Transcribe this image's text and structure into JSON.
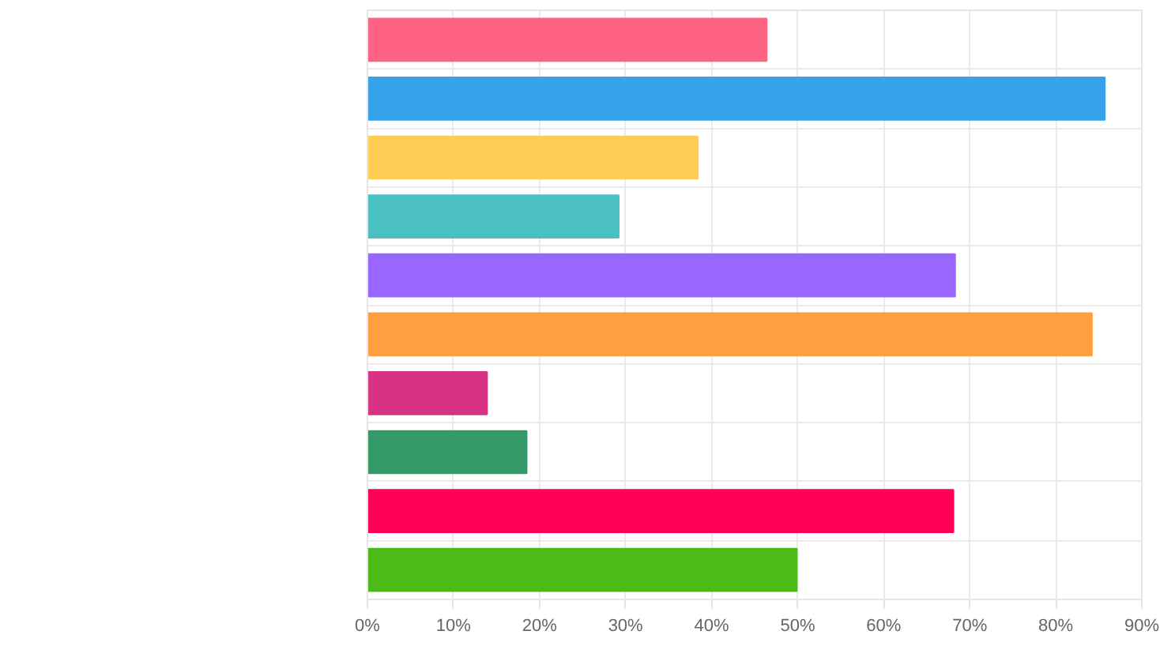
{
  "chart_data": {
    "type": "bar",
    "orientation": "horizontal",
    "categories": [
      null,
      null,
      null,
      null,
      null,
      null,
      null,
      null,
      null,
      null
    ],
    "values": [
      46.4,
      85.7,
      38.4,
      29.2,
      68.3,
      84.2,
      13.9,
      18.5,
      68.1,
      49.9
    ],
    "colors": [
      "#ff6384",
      "#36a2eb",
      "#ffcd56",
      "#4bc0c0",
      "#9966ff",
      "#ff9f40",
      "#d63384",
      "#339966",
      "#ff0055",
      "#4cbb17"
    ],
    "xlim": [
      0,
      90
    ],
    "xticks": [
      {
        "value": 0,
        "label": "0%"
      },
      {
        "value": 10,
        "label": "10%"
      },
      {
        "value": 20,
        "label": "20%"
      },
      {
        "value": 30,
        "label": "30%"
      },
      {
        "value": 40,
        "label": "40%"
      },
      {
        "value": 50,
        "label": "50%"
      },
      {
        "value": 60,
        "label": "60%"
      },
      {
        "value": 70,
        "label": "70%"
      },
      {
        "value": 80,
        "label": "80%"
      },
      {
        "value": 90,
        "label": "90%"
      }
    ],
    "grid": true
  }
}
